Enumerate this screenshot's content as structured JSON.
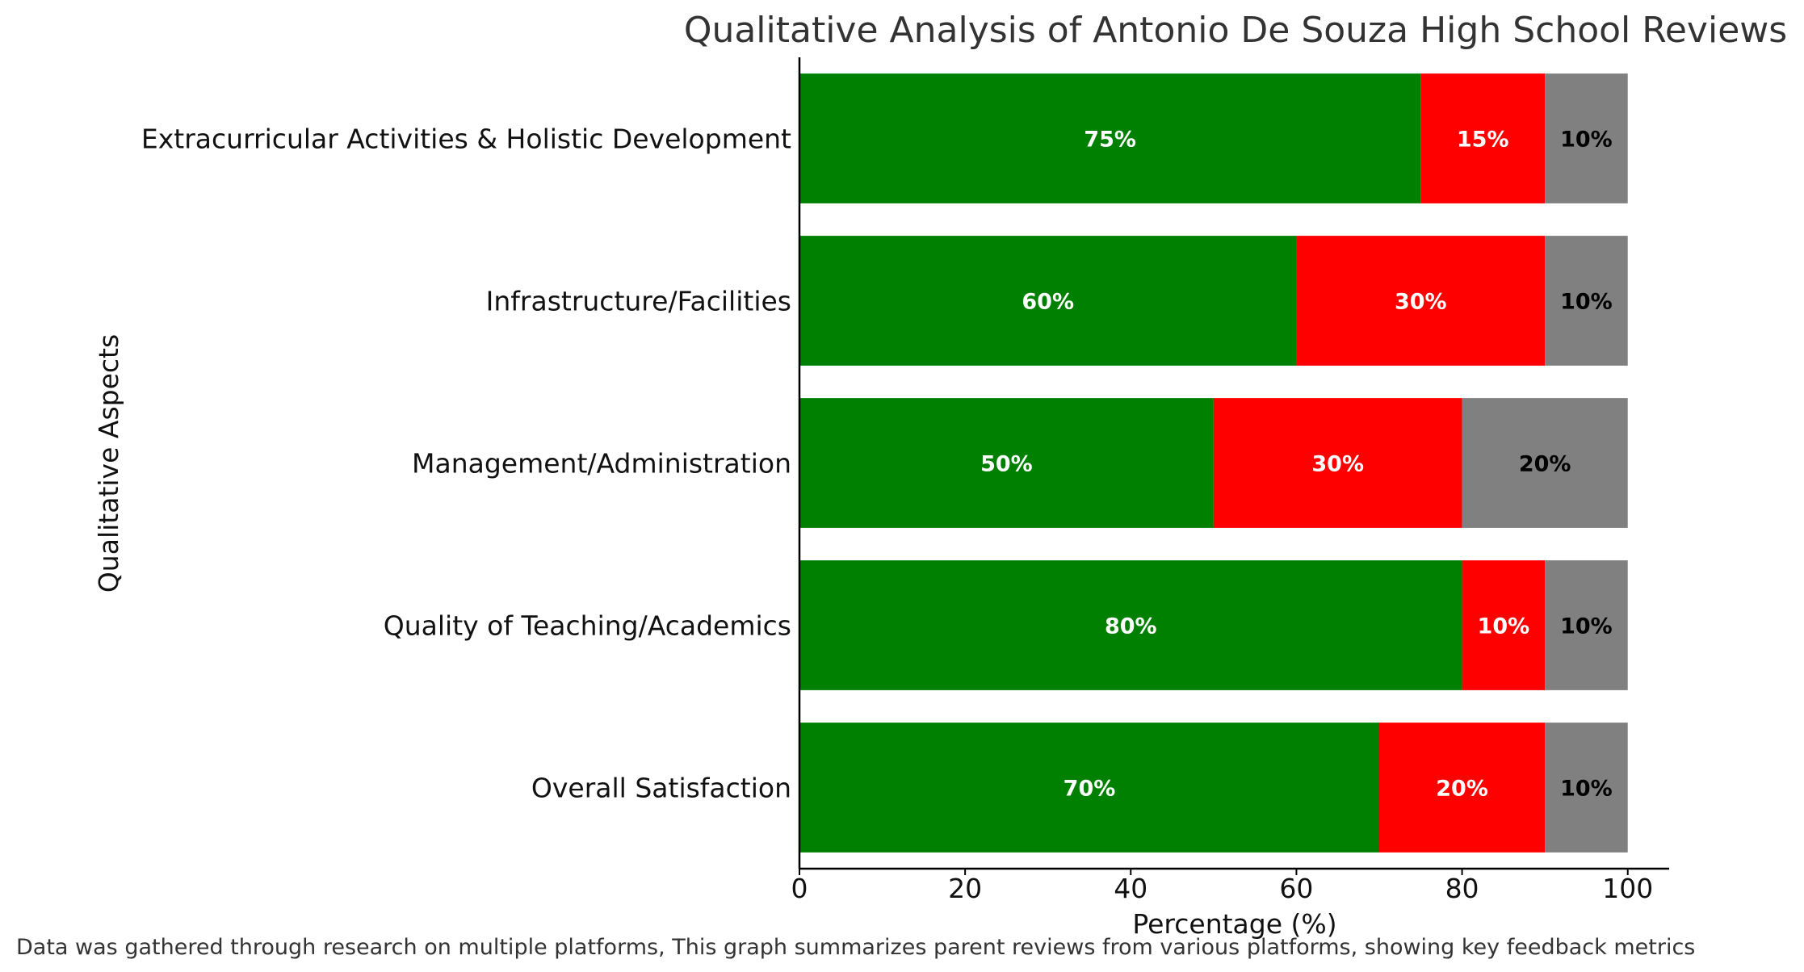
{
  "chart_data": {
    "type": "bar",
    "orientation": "horizontal",
    "stacked": true,
    "title": "Qualitative Analysis of Antonio De Souza High School Reviews",
    "xlabel": "Percentage (%)",
    "ylabel": "Qualitative Aspects",
    "xlim": [
      0,
      105
    ],
    "xticks": [
      0,
      20,
      40,
      60,
      80,
      100
    ],
    "grid": false,
    "legend": "none",
    "categories": [
      "Overall Satisfaction",
      "Quality of Teaching/Academics",
      "Management/Administration",
      "Infrastructure/Facilities",
      "Extracurricular Activities & Holistic Development"
    ],
    "series": [
      {
        "values": [
          70,
          80,
          50,
          60,
          75
        ],
        "color": "#008000",
        "label_color": "#ffffff"
      },
      {
        "values": [
          20,
          10,
          30,
          30,
          15
        ],
        "color": "#ff0000",
        "label_color": "#ffffff"
      },
      {
        "values": [
          10,
          10,
          20,
          10,
          10
        ],
        "color": "#808080",
        "label_color": "#000000"
      }
    ],
    "value_label_suffix": "%"
  },
  "caption": "Data was gathered through research on multiple platforms, This graph summarizes parent reviews from various platforms, showing key feedback metrics"
}
